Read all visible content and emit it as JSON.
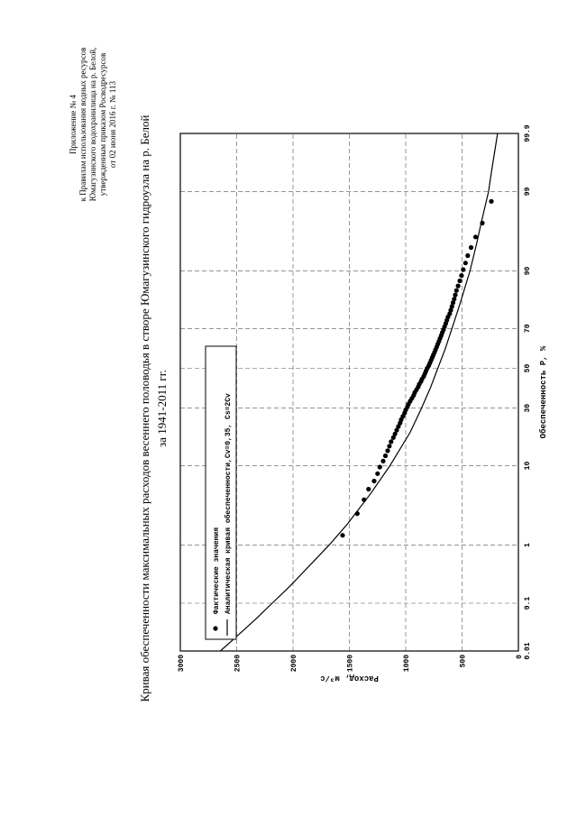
{
  "header": {
    "lines": [
      "Приложение № 4",
      "к Правилам использования водных ресурсов",
      "Юмагузинского водохранилища на р. Белой,",
      "утвержденным приказом Росводресурсов",
      "от 02 июня 2016 г. № 113"
    ]
  },
  "chart_data": {
    "type": "scatter",
    "title": "Кривая обеспеченности максимальных расходов весеннего половодья в створе Юмагузинского гидроузла на р. Белой",
    "subtitle": "за 1941-2011 гг.",
    "xlabel": "Обеспеченность P, %",
    "ylabel": "Расход, м³/с",
    "x_scale": "probability",
    "x_ticks": [
      0.01,
      0.1,
      1,
      10,
      30,
      50,
      70,
      90,
      99,
      99.9
    ],
    "x_tick_labels": [
      "0.01",
      "0.1",
      "1",
      "10",
      "30",
      "50",
      "70",
      "90",
      "99",
      "99.9"
    ],
    "ylim": [
      0,
      3000
    ],
    "y_ticks": [
      0,
      500,
      1000,
      1500,
      2000,
      2500,
      3000
    ],
    "grid": true,
    "legend_position": "top-left",
    "legend": {
      "points": "Фактические значения",
      "curve": "Аналитическая кривая обеспеченности,Cv=0,35,  Cs=2Cv"
    },
    "series": [
      {
        "name": "Фактические значения",
        "type": "scatter",
        "x": [
          1.4,
          2.8,
          4.2,
          5.6,
          6.9,
          8.3,
          9.7,
          11.1,
          12.5,
          13.9,
          15.3,
          16.7,
          18.1,
          19.4,
          20.8,
          22.2,
          23.6,
          25,
          26.4,
          27.8,
          29.2,
          30.6,
          31.9,
          33.3,
          34.7,
          36.1,
          37.5,
          38.9,
          40.3,
          41.7,
          43.1,
          44.4,
          45.8,
          47.2,
          48.6,
          50,
          51.4,
          52.8,
          54.2,
          55.6,
          56.9,
          58.3,
          59.7,
          61.1,
          62.5,
          63.9,
          65.3,
          66.7,
          68.1,
          69.4,
          70.8,
          72.2,
          73.6,
          75,
          76.4,
          77.8,
          79.2,
          80.6,
          81.9,
          83.3,
          84.7,
          86.1,
          87.5,
          88.9,
          90.3,
          91.7,
          93.1,
          94.4,
          95.8,
          97.2,
          98.6
        ],
        "y": [
          1560,
          1430,
          1370,
          1330,
          1280,
          1250,
          1230,
          1200,
          1180,
          1160,
          1145,
          1130,
          1110,
          1095,
          1080,
          1065,
          1050,
          1040,
          1025,
          1010,
          1000,
          985,
          975,
          960,
          945,
          930,
          920,
          905,
          890,
          880,
          865,
          855,
          840,
          830,
          820,
          810,
          795,
          785,
          775,
          765,
          755,
          745,
          735,
          725,
          715,
          705,
          695,
          685,
          675,
          665,
          655,
          645,
          635,
          625,
          610,
          600,
          590,
          580,
          570,
          560,
          550,
          535,
          520,
          505,
          490,
          470,
          450,
          420,
          380,
          320,
          240
        ]
      },
      {
        "name": "Аналитическая кривая обеспеченности,Cv=0,35,  Cs=2Cv",
        "type": "line",
        "x": [
          0.01,
          0.02,
          0.05,
          0.1,
          0.2,
          0.5,
          1,
          2,
          5,
          10,
          20,
          30,
          40,
          50,
          60,
          70,
          80,
          90,
          95,
          97,
          99,
          99.5,
          99.9
        ],
        "y": [
          2645,
          2510,
          2325,
          2185,
          2035,
          1840,
          1680,
          1520,
          1310,
          1140,
          960,
          860,
          780,
          715,
          650,
          590,
          520,
          430,
          370,
          335,
          265,
          240,
          185
        ]
      }
    ]
  }
}
